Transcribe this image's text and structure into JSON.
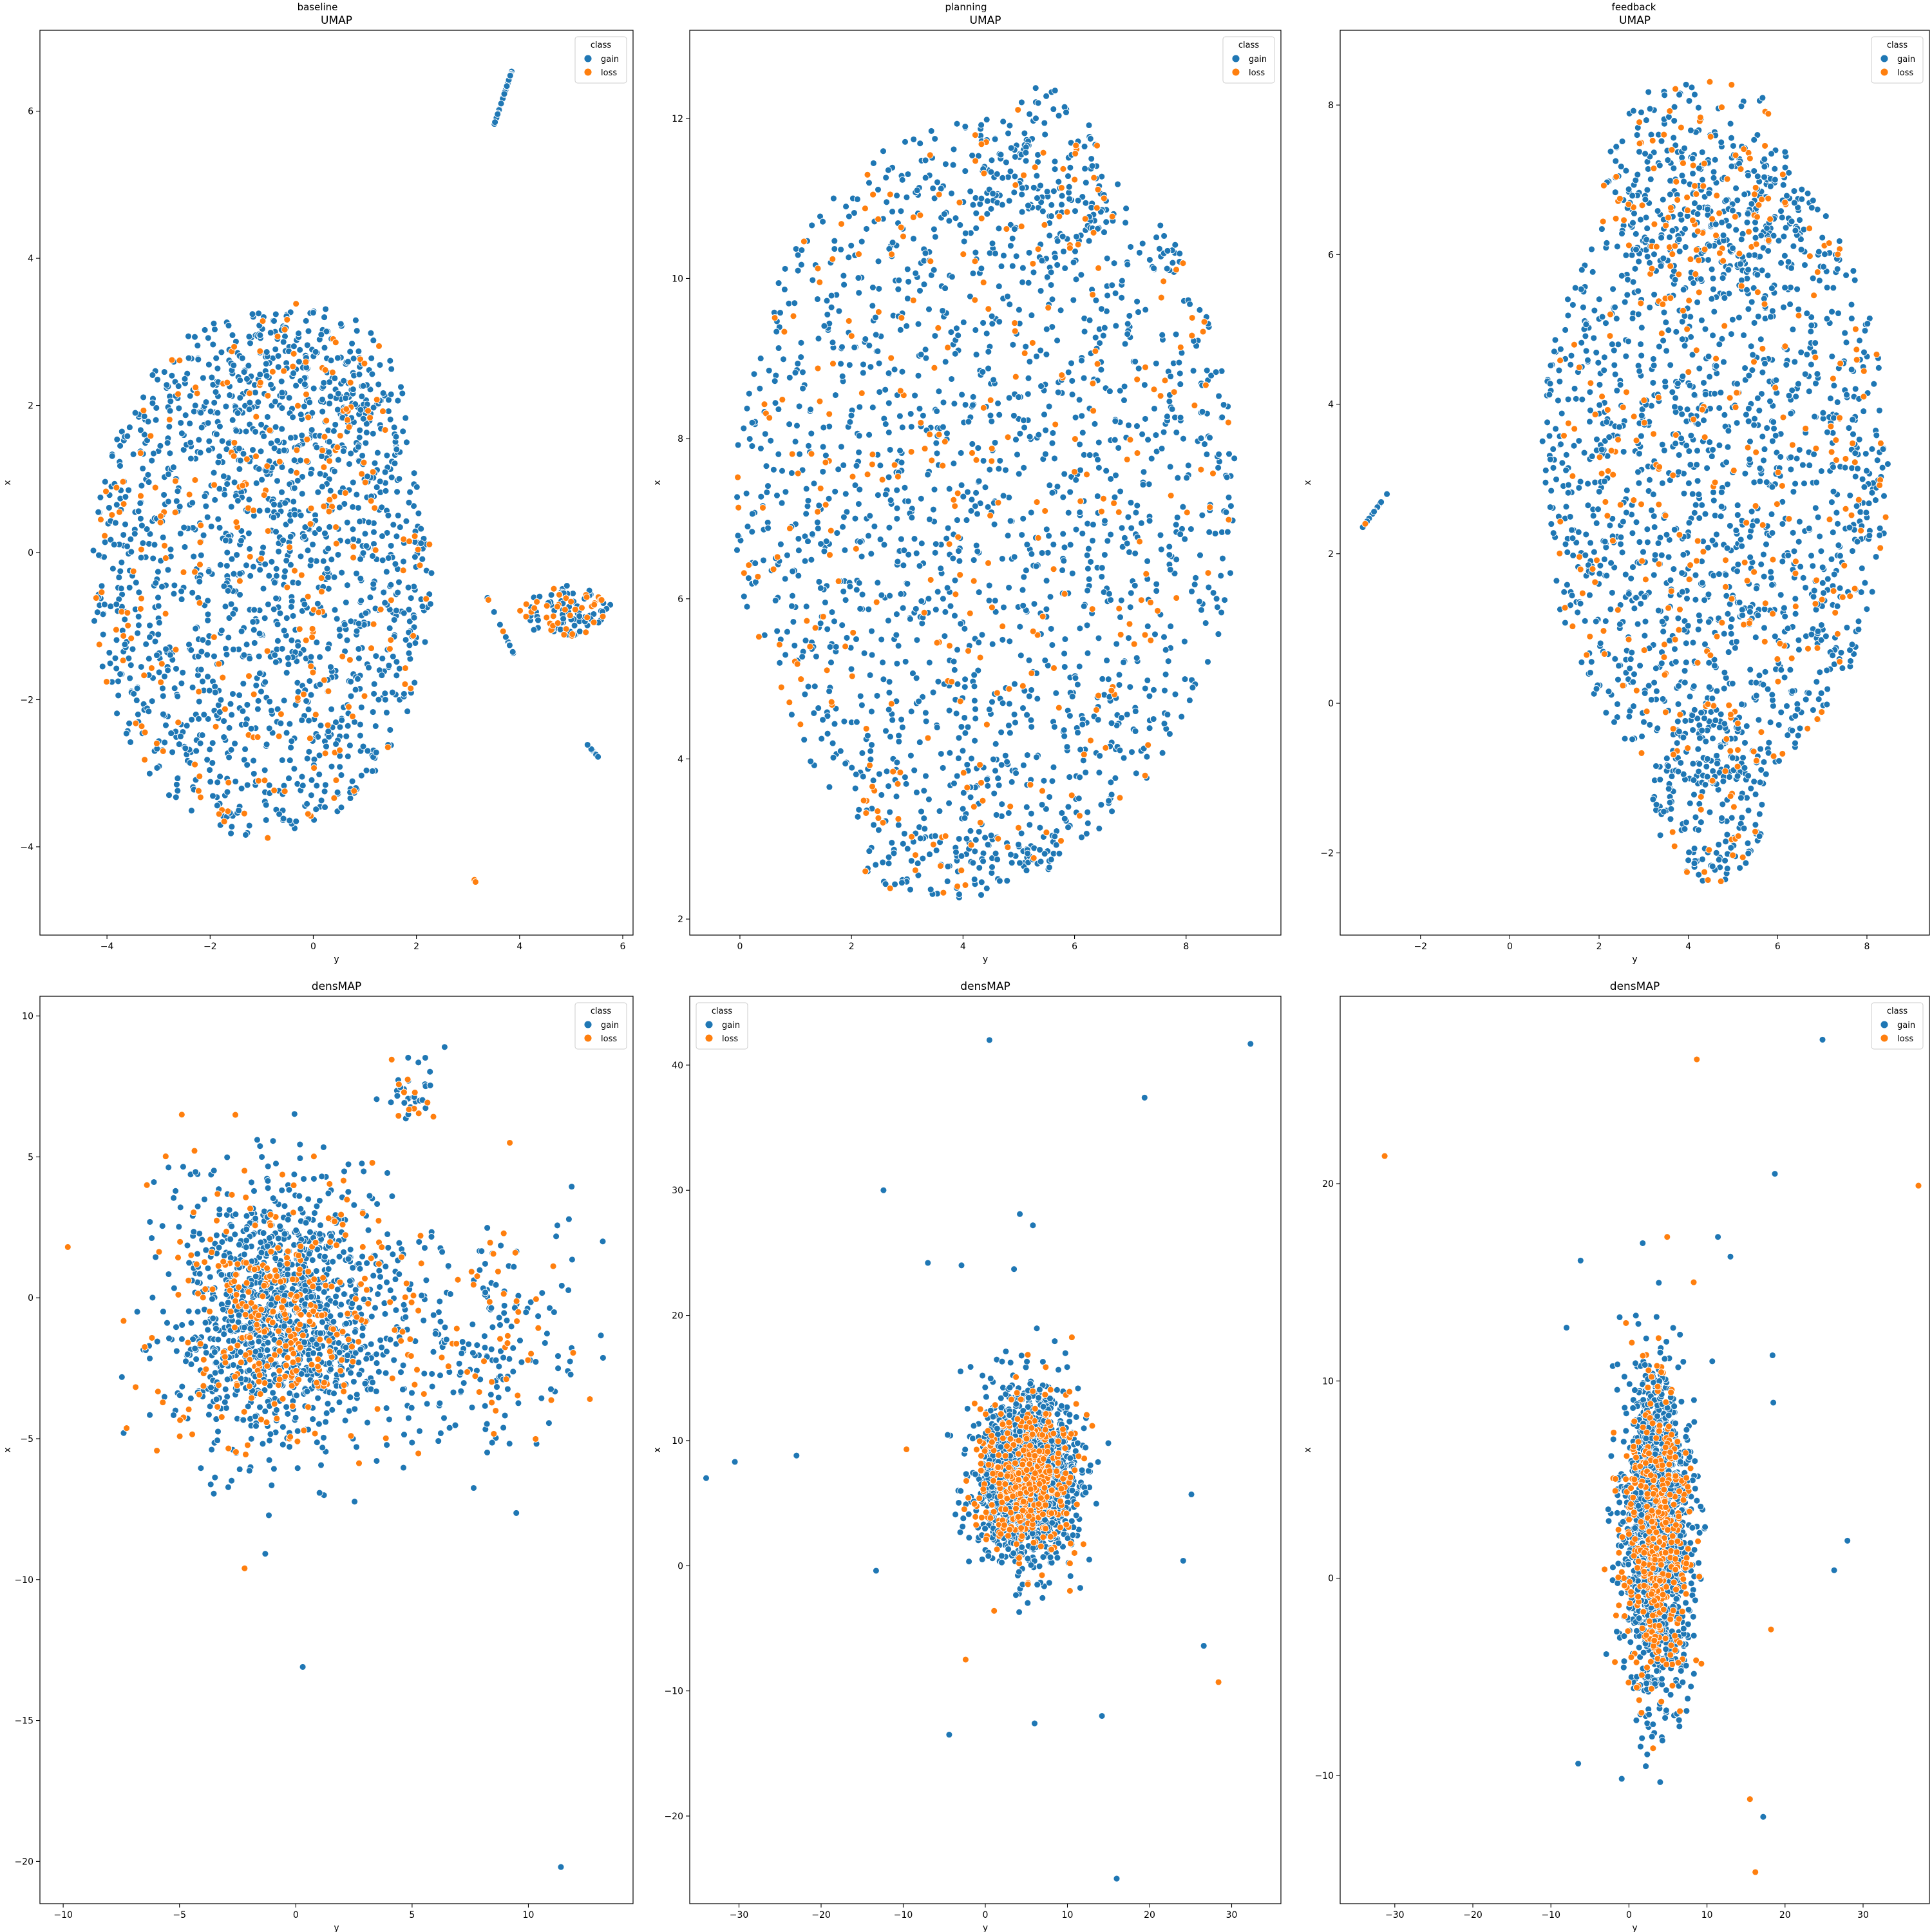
{
  "column_titles": [
    "baseline",
    "planning",
    "feedback"
  ],
  "legend": {
    "title": "class",
    "entries": [
      "gain",
      "loss"
    ]
  },
  "colors": {
    "gain": "#1f77b4",
    "loss": "#ff7f0e",
    "axis": "#000000",
    "marker_edge": "#ffffff"
  },
  "chart_data": [
    {
      "type": "scatter",
      "column": "baseline",
      "title": "UMAP",
      "xlabel": "y",
      "ylabel": "x",
      "xlim": [
        -5.3,
        6.2
      ],
      "ylim": [
        -5.2,
        7.1
      ],
      "xticks": [
        -4,
        -2,
        0,
        2,
        4,
        6
      ],
      "yticks": [
        -4,
        -2,
        0,
        2,
        4,
        6
      ],
      "legend_loc": "top-right",
      "series": [
        {
          "name": "gain"
        },
        {
          "name": "loss"
        }
      ],
      "clusters": [
        {
          "kind": "ellipse",
          "center": [
            -1.0,
            -0.3
          ],
          "radius": [
            3.3,
            3.6
          ],
          "count": 1500,
          "loss_fraction": 0.13
        },
        {
          "kind": "ellipse",
          "center": [
            -0.2,
            1.8
          ],
          "radius": [
            2.0,
            1.6
          ],
          "count": 300,
          "loss_fraction": 0.13
        },
        {
          "kind": "segment",
          "from": [
            3.5,
            5.8
          ],
          "to": [
            3.85,
            6.55
          ],
          "count": 40,
          "loss_fraction": 0.05
        },
        {
          "kind": "ellipse",
          "center": [
            4.9,
            -0.8
          ],
          "radius": [
            0.9,
            0.35
          ],
          "count": 120,
          "loss_fraction": 0.35
        },
        {
          "kind": "segment",
          "from": [
            3.3,
            -0.5
          ],
          "to": [
            3.9,
            -1.4
          ],
          "count": 12,
          "loss_fraction": 0.2
        },
        {
          "kind": "segment",
          "from": [
            5.3,
            -2.6
          ],
          "to": [
            5.55,
            -2.8
          ],
          "count": 10,
          "loss_fraction": 0.0
        },
        {
          "kind": "segment",
          "from": [
            3.05,
            -4.35
          ],
          "to": [
            3.2,
            -4.55
          ],
          "count": 4,
          "loss_fraction": 0.75
        }
      ]
    },
    {
      "type": "scatter",
      "column": "planning",
      "title": "UMAP",
      "xlabel": "y",
      "ylabel": "x",
      "xlim": [
        -0.9,
        9.7
      ],
      "ylim": [
        1.8,
        13.1
      ],
      "xticks": [
        0,
        2,
        4,
        6,
        8
      ],
      "yticks": [
        2,
        4,
        6,
        8,
        10,
        12
      ],
      "legend_loc": "top-right",
      "series": [
        {
          "name": "gain"
        },
        {
          "name": "loss"
        }
      ],
      "clusters": [
        {
          "kind": "ellipse",
          "center": [
            4.4,
            7.3
          ],
          "radius": [
            4.5,
            4.7
          ],
          "count": 1800,
          "loss_fraction": 0.16
        },
        {
          "kind": "ellipse",
          "center": [
            5.3,
            11.2
          ],
          "radius": [
            1.3,
            1.2
          ],
          "count": 150,
          "loss_fraction": 0.16
        },
        {
          "kind": "ellipse",
          "center": [
            3.8,
            2.7
          ],
          "radius": [
            1.6,
            0.45
          ],
          "count": 90,
          "loss_fraction": 0.15
        },
        {
          "kind": "ellipse",
          "center": [
            5.5,
            2.85
          ],
          "radius": [
            0.35,
            0.25
          ],
          "count": 20,
          "loss_fraction": 0.2
        },
        {
          "kind": "ellipse",
          "center": [
            7.7,
            10.3
          ],
          "radius": [
            0.25,
            0.25
          ],
          "count": 12,
          "loss_fraction": 0.1
        }
      ]
    },
    {
      "type": "scatter",
      "column": "feedback",
      "title": "UMAP",
      "xlabel": "y",
      "ylabel": "x",
      "xlim": [
        -3.8,
        9.4
      ],
      "ylim": [
        -3.1,
        9.0
      ],
      "xticks": [
        -2,
        0,
        2,
        4,
        6,
        8
      ],
      "yticks": [
        -2,
        0,
        2,
        4,
        6,
        8
      ],
      "legend_loc": "top-right",
      "series": [
        {
          "name": "gain"
        },
        {
          "name": "loss"
        }
      ],
      "clusters": [
        {
          "kind": "ellipse",
          "center": [
            4.6,
            3.2
          ],
          "radius": [
            3.9,
            4.3
          ],
          "count": 1700,
          "loss_fraction": 0.15
        },
        {
          "kind": "ellipse",
          "center": [
            4.3,
            7.0
          ],
          "radius": [
            2.2,
            1.4
          ],
          "count": 260,
          "loss_fraction": 0.2
        },
        {
          "kind": "ellipse",
          "center": [
            4.5,
            -1.2
          ],
          "radius": [
            1.3,
            1.2
          ],
          "count": 220,
          "loss_fraction": 0.12
        },
        {
          "kind": "segment",
          "from": [
            -3.3,
            2.35
          ],
          "to": [
            -2.75,
            2.8
          ],
          "count": 18,
          "loss_fraction": 0.1
        }
      ]
    },
    {
      "type": "scatter",
      "column": "baseline",
      "title": "densMAP",
      "xlabel": "y",
      "ylabel": "x",
      "xlim": [
        -11,
        14.5
      ],
      "ylim": [
        -21.5,
        10.7
      ],
      "xticks": [
        -10,
        -5,
        0,
        5,
        10
      ],
      "yticks": [
        -20,
        -15,
        -10,
        -5,
        0,
        5,
        10
      ],
      "legend_loc": "top-right",
      "series": [
        {
          "name": "gain"
        },
        {
          "name": "loss"
        }
      ],
      "clusters": [
        {
          "kind": "gaussian",
          "center": [
            -0.6,
            -0.5
          ],
          "sigma": [
            2.2,
            2.2
          ],
          "count": 1500,
          "loss_fraction": 0.22
        },
        {
          "kind": "gaussian",
          "center": [
            7.5,
            -1.5
          ],
          "sigma": [
            2.6,
            2.2
          ],
          "count": 260,
          "loss_fraction": 0.22
        },
        {
          "kind": "gaussian",
          "center": [
            5.0,
            7.3
          ],
          "sigma": [
            0.5,
            0.6
          ],
          "count": 40,
          "loss_fraction": 0.25
        }
      ],
      "points": [
        {
          "x": -9.8,
          "y": 1.8,
          "class": "loss"
        },
        {
          "x": 13.2,
          "y": 2.0,
          "class": "gain"
        },
        {
          "x": 0.3,
          "y": -13.1,
          "class": "gain"
        },
        {
          "x": 11.4,
          "y": -20.2,
          "class": "gain"
        },
        {
          "x": -4.9,
          "y": 6.5,
          "class": "loss"
        },
        {
          "x": -6.4,
          "y": 4.0,
          "class": "loss"
        },
        {
          "x": -7.4,
          "y": -4.8,
          "class": "gain"
        },
        {
          "x": -2.2,
          "y": -9.6,
          "class": "loss"
        },
        {
          "x": 9.2,
          "y": 5.5,
          "class": "loss"
        },
        {
          "x": 6.4,
          "y": 8.9,
          "class": "gain"
        }
      ]
    },
    {
      "type": "scatter",
      "column": "planning",
      "title": "densMAP",
      "xlabel": "y",
      "ylabel": "x",
      "xlim": [
        -36,
        36
      ],
      "ylim": [
        -27,
        45.5
      ],
      "xticks": [
        -30,
        -20,
        -10,
        0,
        10,
        20,
        30
      ],
      "yticks": [
        -20,
        -10,
        0,
        10,
        20,
        30,
        40
      ],
      "legend_loc": "top-left",
      "series": [
        {
          "name": "gain"
        },
        {
          "name": "loss"
        }
      ],
      "clusters": [
        {
          "kind": "gaussian",
          "center": [
            5.0,
            7.0
          ],
          "sigma": [
            3.0,
            3.2
          ],
          "count": 2000,
          "loss_fraction": 0.2
        }
      ],
      "points": [
        {
          "x": 0.5,
          "y": 42.0,
          "class": "gain"
        },
        {
          "x": 32.3,
          "y": 41.7,
          "class": "gain"
        },
        {
          "x": 19.4,
          "y": 37.4,
          "class": "gain"
        },
        {
          "x": -12.4,
          "y": 30.0,
          "class": "gain"
        },
        {
          "x": -34.0,
          "y": 7.0,
          "class": "gain"
        },
        {
          "x": -30.5,
          "y": 8.3,
          "class": "gain"
        },
        {
          "x": -23.0,
          "y": 8.8,
          "class": "gain"
        },
        {
          "x": -13.3,
          "y": -0.4,
          "class": "gain"
        },
        {
          "x": -9.6,
          "y": 9.3,
          "class": "loss"
        },
        {
          "x": -2.4,
          "y": -7.5,
          "class": "loss"
        },
        {
          "x": -4.4,
          "y": -13.5,
          "class": "gain"
        },
        {
          "x": 6.0,
          "y": -12.6,
          "class": "gain"
        },
        {
          "x": 14.2,
          "y": -12.0,
          "class": "gain"
        },
        {
          "x": 16.0,
          "y": -25.0,
          "class": "gain"
        },
        {
          "x": 26.6,
          "y": -6.4,
          "class": "gain"
        },
        {
          "x": 28.4,
          "y": -9.3,
          "class": "loss"
        },
        {
          "x": 24.1,
          "y": 0.4,
          "class": "gain"
        },
        {
          "x": 25.1,
          "y": 5.7,
          "class": "gain"
        },
        {
          "x": 4.2,
          "y": 28.1,
          "class": "gain"
        },
        {
          "x": 5.8,
          "y": 27.2,
          "class": "gain"
        },
        {
          "x": -7.0,
          "y": 24.2,
          "class": "gain"
        },
        {
          "x": -2.9,
          "y": 24.0,
          "class": "gain"
        },
        {
          "x": 3.5,
          "y": 23.7,
          "class": "gain"
        }
      ]
    },
    {
      "type": "scatter",
      "column": "feedback",
      "title": "densMAP",
      "xlabel": "y",
      "ylabel": "x",
      "xlim": [
        -37,
        38.5
      ],
      "ylim": [
        -16.5,
        29.5
      ],
      "xticks": [
        -30,
        -20,
        -10,
        0,
        10,
        20,
        30
      ],
      "yticks": [
        -10,
        0,
        10,
        20
      ],
      "legend_loc": "top-right",
      "series": [
        {
          "name": "gain"
        },
        {
          "name": "loss"
        }
      ],
      "clusters": [
        {
          "kind": "gaussian",
          "center": [
            3.6,
            2.3
          ],
          "sigma": [
            2.1,
            3.9
          ],
          "count": 2000,
          "loss_fraction": 0.2
        }
      ],
      "points": [
        {
          "x": -31.3,
          "y": 21.4,
          "class": "loss"
        },
        {
          "x": 37.1,
          "y": 19.9,
          "class": "loss"
        },
        {
          "x": 24.8,
          "y": 27.3,
          "class": "gain"
        },
        {
          "x": 8.7,
          "y": 26.3,
          "class": "loss"
        },
        {
          "x": 18.7,
          "y": 20.5,
          "class": "gain"
        },
        {
          "x": -6.2,
          "y": 16.1,
          "class": "gain"
        },
        {
          "x": 11.4,
          "y": 17.3,
          "class": "gain"
        },
        {
          "x": 13.0,
          "y": 16.3,
          "class": "gain"
        },
        {
          "x": 4.9,
          "y": 17.3,
          "class": "loss"
        },
        {
          "x": -6.5,
          "y": -9.4,
          "class": "gain"
        },
        {
          "x": 15.5,
          "y": -11.2,
          "class": "loss"
        },
        {
          "x": 16.2,
          "y": -14.9,
          "class": "loss"
        },
        {
          "x": 17.2,
          "y": -12.1,
          "class": "gain"
        },
        {
          "x": 26.3,
          "y": 0.4,
          "class": "gain"
        },
        {
          "x": 28.0,
          "y": 1.9,
          "class": "gain"
        },
        {
          "x": 18.2,
          "y": -2.6,
          "class": "loss"
        },
        {
          "x": 18.4,
          "y": 11.3,
          "class": "gain"
        },
        {
          "x": 18.5,
          "y": 8.9,
          "class": "gain"
        },
        {
          "x": 8.3,
          "y": 15.0,
          "class": "loss"
        },
        {
          "x": -8.0,
          "y": 12.7,
          "class": "gain"
        }
      ]
    }
  ]
}
